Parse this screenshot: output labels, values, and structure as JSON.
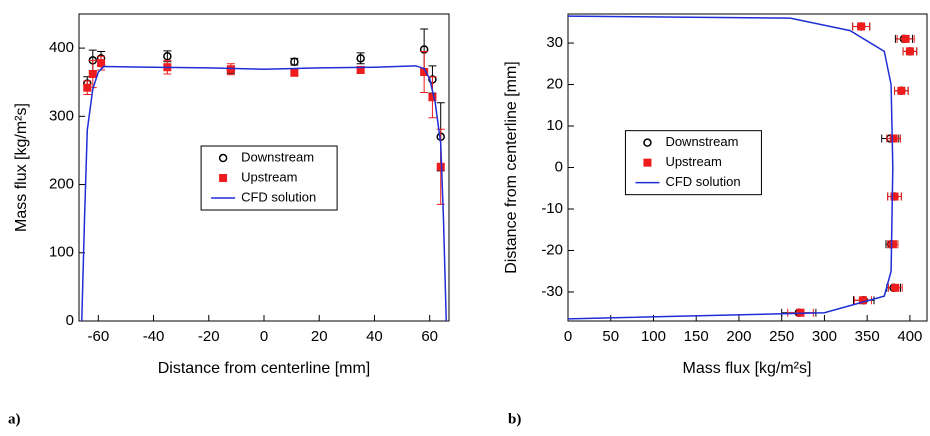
{
  "chart_data": [
    {
      "type": "scatter",
      "panel_label": "a)",
      "x_label": "Distance from centerline [mm]",
      "y_label": "Mass flux [kg/m²s]",
      "xlim": [
        -67,
        67
      ],
      "xticks": [
        -60,
        -40,
        -20,
        0,
        20,
        40,
        60
      ],
      "ylim": [
        0,
        450
      ],
      "yticks": [
        0,
        100,
        200,
        300,
        400
      ],
      "legend": "center",
      "series": [
        {
          "name": "Downstream",
          "color": "#000000",
          "marker": "circle",
          "x": [
            -64,
            -62,
            -59,
            -35,
            -12,
            11,
            35,
            58,
            61,
            64
          ],
          "values": [
            348,
            382,
            385,
            388,
            368,
            380,
            385,
            398,
            354,
            270
          ],
          "errors": [
            10,
            15,
            10,
            8,
            5,
            5,
            8,
            30,
            20,
            50
          ]
        },
        {
          "name": "Upstream",
          "color": "#ee1c1c",
          "marker": "square",
          "x": [
            -64,
            -62,
            -59,
            -35,
            -12,
            11,
            35,
            58,
            61,
            64
          ],
          "values": [
            342,
            362,
            378,
            372,
            369,
            364,
            368,
            365,
            328,
            226
          ],
          "errors": [
            10,
            20,
            10,
            10,
            8,
            5,
            5,
            30,
            30,
            55
          ]
        },
        {
          "name": "CFD solution",
          "color": "#1f2ed6",
          "marker": "line",
          "x": [
            -66,
            -65,
            -64,
            -62,
            -60,
            -58,
            -40,
            -20,
            0,
            20,
            40,
            55,
            58,
            60,
            62,
            64,
            65,
            66
          ],
          "values": [
            0,
            150,
            280,
            340,
            365,
            373,
            372,
            371,
            369,
            371,
            372,
            374,
            370,
            355,
            320,
            260,
            150,
            0
          ]
        }
      ]
    },
    {
      "type": "scatter",
      "panel_label": "b)",
      "x_label": "Mass flux [kg/m²s]",
      "y_label": "Distance from centerline [mm]",
      "xlim": [
        0,
        420
      ],
      "xticks": [
        0,
        50,
        100,
        150,
        200,
        250,
        300,
        350,
        400
      ],
      "ylim": [
        -37,
        37
      ],
      "yticks": [
        -30,
        -20,
        -10,
        0,
        10,
        20,
        30
      ],
      "legend": "center",
      "series": [
        {
          "name": "Downstream",
          "color": "#000000",
          "marker": "circle",
          "x": [
            343,
            393,
            400,
            390,
            377,
            382,
            378,
            381,
            346,
            270
          ],
          "values": [
            34,
            31,
            28,
            18.5,
            7,
            -7,
            -18.5,
            -29,
            -32,
            -35
          ],
          "xerrors": [
            10,
            10,
            8,
            8,
            10,
            8,
            6,
            8,
            12,
            20
          ]
        },
        {
          "name": "Upstream",
          "color": "#ee1c1c",
          "marker": "square",
          "x": [
            343,
            395,
            400,
            390,
            381,
            382,
            380,
            383,
            345,
            272
          ],
          "values": [
            34,
            31,
            28,
            18.5,
            7,
            -7,
            -18.5,
            -29,
            -32,
            -35
          ],
          "xerrors": [
            10,
            10,
            8,
            8,
            8,
            8,
            6,
            8,
            10,
            15
          ]
        },
        {
          "name": "CFD solution",
          "color": "#1f2ed6",
          "marker": "line",
          "x": [
            0,
            260,
            330,
            370,
            378,
            380,
            378,
            370,
            300,
            0
          ],
          "values": [
            36.5,
            36,
            33,
            28,
            20,
            0,
            -25,
            -31,
            -35,
            -36.5
          ]
        }
      ]
    }
  ]
}
